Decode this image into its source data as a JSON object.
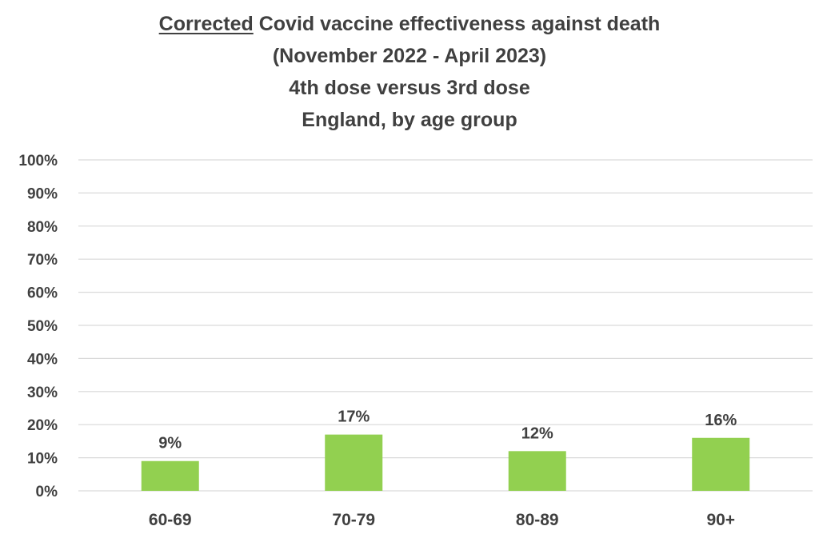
{
  "title": {
    "emphasis": "Corrected",
    "line1_rest": " Covid vaccine effectiveness against death",
    "line2": "(November 2022 - April 2023)",
    "line3": "4th dose versus 3rd dose",
    "line4": "England, by age group"
  },
  "chart_data": {
    "type": "bar",
    "title": "Corrected Covid vaccine effectiveness against death (November 2022 - April 2023) 4th dose versus 3rd dose England, by age group",
    "categories": [
      "60-69",
      "70-79",
      "80-89",
      "90+"
    ],
    "values": [
      9,
      17,
      12,
      16
    ],
    "data_labels": [
      "9%",
      "17%",
      "12%",
      "16%"
    ],
    "ylim": [
      0,
      100
    ],
    "yticks": [
      0,
      10,
      20,
      30,
      40,
      50,
      60,
      70,
      80,
      90,
      100
    ],
    "ytick_labels": [
      "0%",
      "10%",
      "20%",
      "30%",
      "40%",
      "50%",
      "60%",
      "70%",
      "80%",
      "90%",
      "100%"
    ],
    "xlabel": "",
    "ylabel": "",
    "grid": true,
    "legend": "none",
    "bar_color": "#92d050",
    "grid_color": "#d9d9d9"
  }
}
